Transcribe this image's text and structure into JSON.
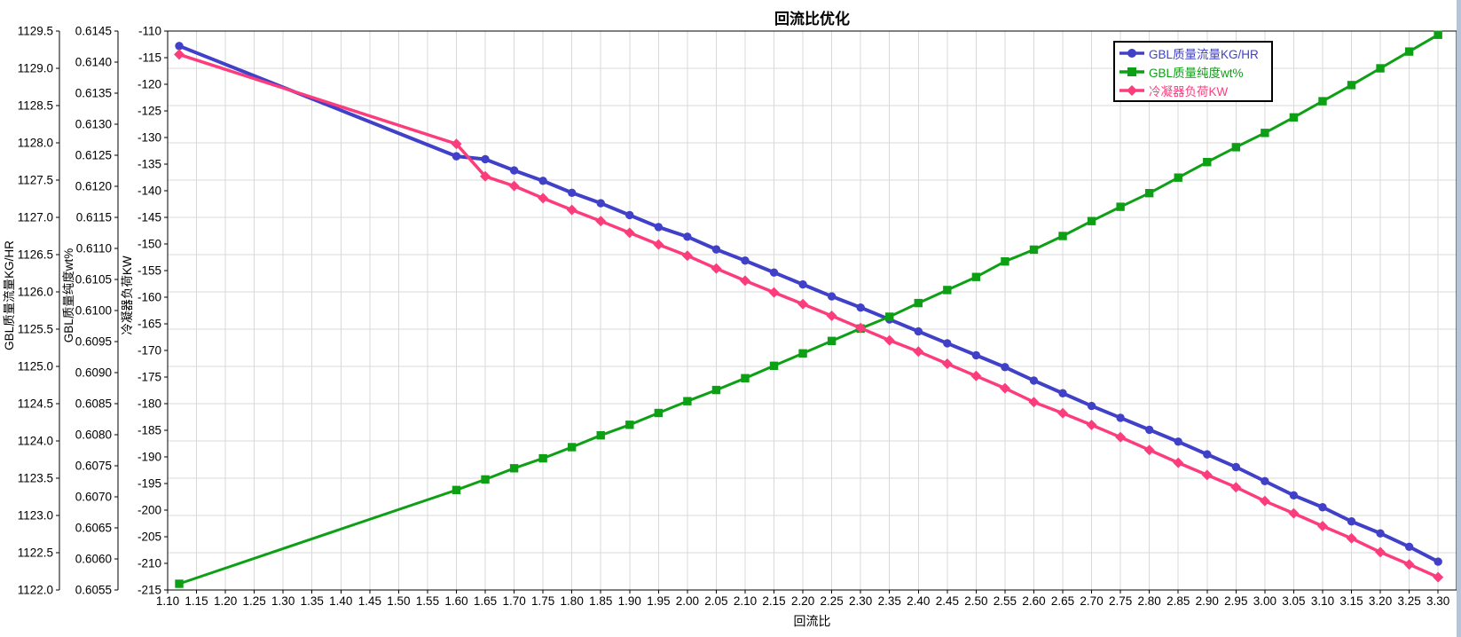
{
  "window": {
    "background": "#ffffff",
    "right_edge_strip_color": "#b6c4d8"
  },
  "title": "回流比优化",
  "colors": {
    "flow_series": "#4040c8",
    "purity_series": "#0da015",
    "condenser_series": "#fc3d7c",
    "gridline": "#d9d9d9",
    "axis": "#000000",
    "legend_border": "#000000"
  },
  "legend": {
    "position": "top-right",
    "entries": [
      {
        "label": "GBL质量流量KG/HR",
        "color": "#4040c8",
        "marker": "circle"
      },
      {
        "label": "GBL质量纯度wt%",
        "color": "#0da015",
        "marker": "square"
      },
      {
        "label": "冷凝器负荷KW",
        "color": "#fc3d7c",
        "marker": "diamond"
      }
    ]
  },
  "chart_data": {
    "type": "line",
    "title": "回流比优化",
    "xlabel": "回流比",
    "grid": true,
    "legend_position": "top-right",
    "x_axis": {
      "label": "回流比",
      "min": 1.1,
      "max": 3.332,
      "tick_step": 0.05,
      "ticks": [
        "1.10",
        "1.15",
        "1.20",
        "1.25",
        "1.30",
        "1.35",
        "1.40",
        "1.45",
        "1.50",
        "1.55",
        "1.60",
        "1.65",
        "1.70",
        "1.75",
        "1.80",
        "1.85",
        "1.90",
        "1.95",
        "2.00",
        "2.05",
        "2.10",
        "2.15",
        "2.20",
        "2.25",
        "2.30",
        "2.35",
        "2.40",
        "2.45",
        "2.50",
        "2.55",
        "2.60",
        "2.65",
        "2.70",
        "2.75",
        "2.80",
        "2.85",
        "2.90",
        "2.95",
        "3.00",
        "3.05",
        "3.10",
        "3.15",
        "3.20",
        "3.25",
        "3.30"
      ]
    },
    "y_axes": [
      {
        "id": "flow",
        "label": "GBL质量流量KG/HR",
        "min": 1122.0,
        "max": 1129.5,
        "tick_step": 0.5,
        "gridlines": true,
        "ticks": [
          "1129.5",
          "1129.0",
          "1128.5",
          "1128.0",
          "1127.5",
          "1127.0",
          "1126.5",
          "1126.0",
          "1125.5",
          "1125.0",
          "1124.5",
          "1124.0",
          "1123.5",
          "1123.0",
          "1122.5",
          "1122.0"
        ]
      },
      {
        "id": "purity",
        "label": "GBL质量纯度wt%",
        "min": 0.6055,
        "max": 0.6145,
        "tick_step": 0.0005,
        "gridlines": false,
        "ticks": [
          "0.6145",
          "0.6140",
          "0.6135",
          "0.6130",
          "0.6125",
          "0.6120",
          "0.6115",
          "0.6110",
          "0.6105",
          "0.6100",
          "0.6095",
          "0.6090",
          "0.6085",
          "0.6080",
          "0.6075",
          "0.6070",
          "0.6065",
          "0.6060",
          "0.6055"
        ]
      },
      {
        "id": "condenser",
        "label": "冷凝器负荷KW",
        "min": -215,
        "max": -110,
        "tick_step": 5,
        "gridlines": false,
        "ticks": [
          "-110",
          "-115",
          "-120",
          "-125",
          "-130",
          "-135",
          "-140",
          "-145",
          "-150",
          "-155",
          "-160",
          "-165",
          "-170",
          "-175",
          "-180",
          "-185",
          "-190",
          "-195",
          "-200",
          "-205",
          "-210",
          "-215"
        ]
      }
    ],
    "x": [
      1.12,
      1.6,
      1.65,
      1.7,
      1.75,
      1.8,
      1.85,
      1.9,
      1.95,
      2.0,
      2.05,
      2.1,
      2.15,
      2.2,
      2.25,
      2.3,
      2.35,
      2.4,
      2.45,
      2.5,
      2.55,
      2.6,
      2.65,
      2.7,
      2.75,
      2.8,
      2.85,
      2.9,
      2.95,
      3.0,
      3.05,
      3.1,
      3.15,
      3.2,
      3.25,
      3.3
    ],
    "series": [
      {
        "name": "GBL质量流量KG/HR",
        "axis": "flow",
        "color": "#4040c8",
        "marker": "circle",
        "line_width": 4,
        "values": [
          1129.3,
          1127.82,
          1127.78,
          1127.63,
          1127.49,
          1127.33,
          1127.19,
          1127.03,
          1126.87,
          1126.74,
          1126.57,
          1126.42,
          1126.26,
          1126.1,
          1125.94,
          1125.79,
          1125.63,
          1125.47,
          1125.31,
          1125.15,
          1124.99,
          1124.81,
          1124.64,
          1124.47,
          1124.31,
          1124.15,
          1123.99,
          1123.82,
          1123.65,
          1123.46,
          1123.27,
          1123.11,
          1122.92,
          1122.76,
          1122.58,
          1122.38
        ]
      },
      {
        "name": "GBL质量纯度wt%",
        "axis": "purity",
        "color": "#0da015",
        "marker": "square",
        "line_width": 3,
        "values": [
          0.6056,
          0.60711,
          0.60728,
          0.60746,
          0.60762,
          0.6078,
          0.60799,
          0.60816,
          0.60835,
          0.60854,
          0.60872,
          0.60891,
          0.60911,
          0.60931,
          0.60951,
          0.60971,
          0.6099,
          0.61012,
          0.61033,
          0.61054,
          0.61079,
          0.61098,
          0.6112,
          0.61144,
          0.61167,
          0.61189,
          0.61214,
          0.61239,
          0.61263,
          0.61286,
          0.61311,
          0.61337,
          0.61363,
          0.6139,
          0.61417,
          0.61444
        ]
      },
      {
        "name": "冷凝器负荷KW",
        "axis": "condenser",
        "color": "#fc3d7c",
        "marker": "diamond",
        "line_width": 3.5,
        "values": [
          -114.4,
          -131.2,
          -137.3,
          -139.1,
          -141.4,
          -143.6,
          -145.7,
          -147.9,
          -150.1,
          -152.2,
          -154.6,
          -156.9,
          -159.1,
          -161.3,
          -163.5,
          -165.8,
          -168.1,
          -170.2,
          -172.5,
          -174.8,
          -177.1,
          -179.7,
          -181.8,
          -184.0,
          -186.3,
          -188.7,
          -191.1,
          -193.4,
          -195.7,
          -198.3,
          -200.6,
          -203.0,
          -205.3,
          -207.9,
          -210.2,
          -212.6
        ]
      }
    ]
  }
}
